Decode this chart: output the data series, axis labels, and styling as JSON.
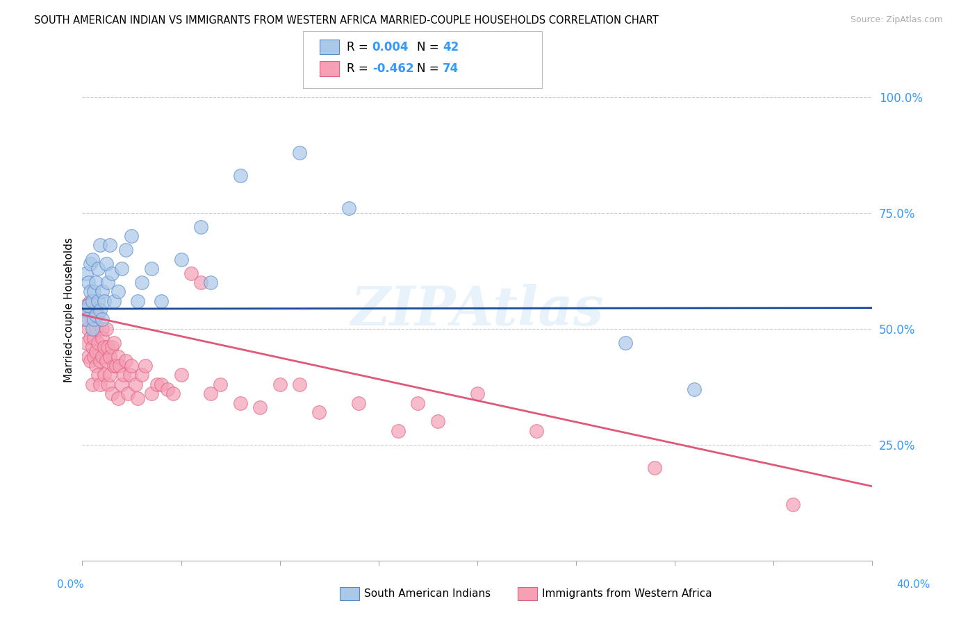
{
  "title": "SOUTH AMERICAN INDIAN VS IMMIGRANTS FROM WESTERN AFRICA MARRIED-COUPLE HOUSEHOLDS CORRELATION CHART",
  "source": "Source: ZipAtlas.com",
  "ylabel": "Married-couple Households",
  "blue_color": "#aac8e8",
  "pink_color": "#f5a0b5",
  "blue_edge_color": "#5588cc",
  "pink_edge_color": "#e06080",
  "blue_line_color": "#1a4a9a",
  "pink_line_color": "#e05878",
  "tick_color": "#3399ff",
  "watermark": "ZIPAtlas",
  "ytick_vals": [
    0.0,
    0.25,
    0.5,
    0.75,
    1.0
  ],
  "ytick_labels": [
    "",
    "25.0%",
    "50.0%",
    "75.0%",
    "100.0%"
  ],
  "xlim": [
    0.0,
    0.4
  ],
  "ylim": [
    0.0,
    1.08
  ],
  "blue_line_y0": 0.543,
  "blue_line_y1": 0.545,
  "pink_line_y0": 0.53,
  "pink_line_y1": 0.16,
  "blue_x": [
    0.001,
    0.002,
    0.002,
    0.003,
    0.003,
    0.004,
    0.004,
    0.005,
    0.005,
    0.005,
    0.006,
    0.006,
    0.007,
    0.007,
    0.008,
    0.008,
    0.009,
    0.009,
    0.01,
    0.01,
    0.011,
    0.012,
    0.013,
    0.014,
    0.015,
    0.016,
    0.018,
    0.02,
    0.022,
    0.025,
    0.028,
    0.03,
    0.035,
    0.04,
    0.05,
    0.06,
    0.065,
    0.08,
    0.11,
    0.135,
    0.275,
    0.31
  ],
  "blue_y": [
    0.54,
    0.52,
    0.62,
    0.55,
    0.6,
    0.58,
    0.64,
    0.5,
    0.56,
    0.65,
    0.52,
    0.58,
    0.53,
    0.6,
    0.56,
    0.63,
    0.54,
    0.68,
    0.52,
    0.58,
    0.56,
    0.64,
    0.6,
    0.68,
    0.62,
    0.56,
    0.58,
    0.63,
    0.67,
    0.7,
    0.56,
    0.6,
    0.63,
    0.56,
    0.65,
    0.72,
    0.6,
    0.83,
    0.88,
    0.76,
    0.47,
    0.37
  ],
  "pink_x": [
    0.001,
    0.002,
    0.002,
    0.003,
    0.003,
    0.004,
    0.004,
    0.004,
    0.005,
    0.005,
    0.005,
    0.006,
    0.006,
    0.006,
    0.007,
    0.007,
    0.007,
    0.008,
    0.008,
    0.008,
    0.009,
    0.009,
    0.01,
    0.01,
    0.01,
    0.011,
    0.011,
    0.012,
    0.012,
    0.013,
    0.013,
    0.014,
    0.014,
    0.015,
    0.015,
    0.016,
    0.016,
    0.017,
    0.018,
    0.018,
    0.019,
    0.02,
    0.021,
    0.022,
    0.023,
    0.024,
    0.025,
    0.027,
    0.028,
    0.03,
    0.032,
    0.035,
    0.038,
    0.04,
    0.043,
    0.046,
    0.05,
    0.055,
    0.06,
    0.065,
    0.07,
    0.08,
    0.09,
    0.1,
    0.11,
    0.12,
    0.14,
    0.16,
    0.17,
    0.18,
    0.2,
    0.23,
    0.29,
    0.36
  ],
  "pink_y": [
    0.52,
    0.47,
    0.55,
    0.44,
    0.5,
    0.48,
    0.43,
    0.56,
    0.46,
    0.52,
    0.38,
    0.5,
    0.44,
    0.48,
    0.45,
    0.42,
    0.5,
    0.47,
    0.4,
    0.53,
    0.43,
    0.38,
    0.5,
    0.44,
    0.48,
    0.46,
    0.4,
    0.5,
    0.43,
    0.46,
    0.38,
    0.44,
    0.4,
    0.46,
    0.36,
    0.42,
    0.47,
    0.42,
    0.44,
    0.35,
    0.42,
    0.38,
    0.4,
    0.43,
    0.36,
    0.4,
    0.42,
    0.38,
    0.35,
    0.4,
    0.42,
    0.36,
    0.38,
    0.38,
    0.37,
    0.36,
    0.4,
    0.62,
    0.6,
    0.36,
    0.38,
    0.34,
    0.33,
    0.38,
    0.38,
    0.32,
    0.34,
    0.28,
    0.34,
    0.3,
    0.36,
    0.28,
    0.2,
    0.12
  ]
}
